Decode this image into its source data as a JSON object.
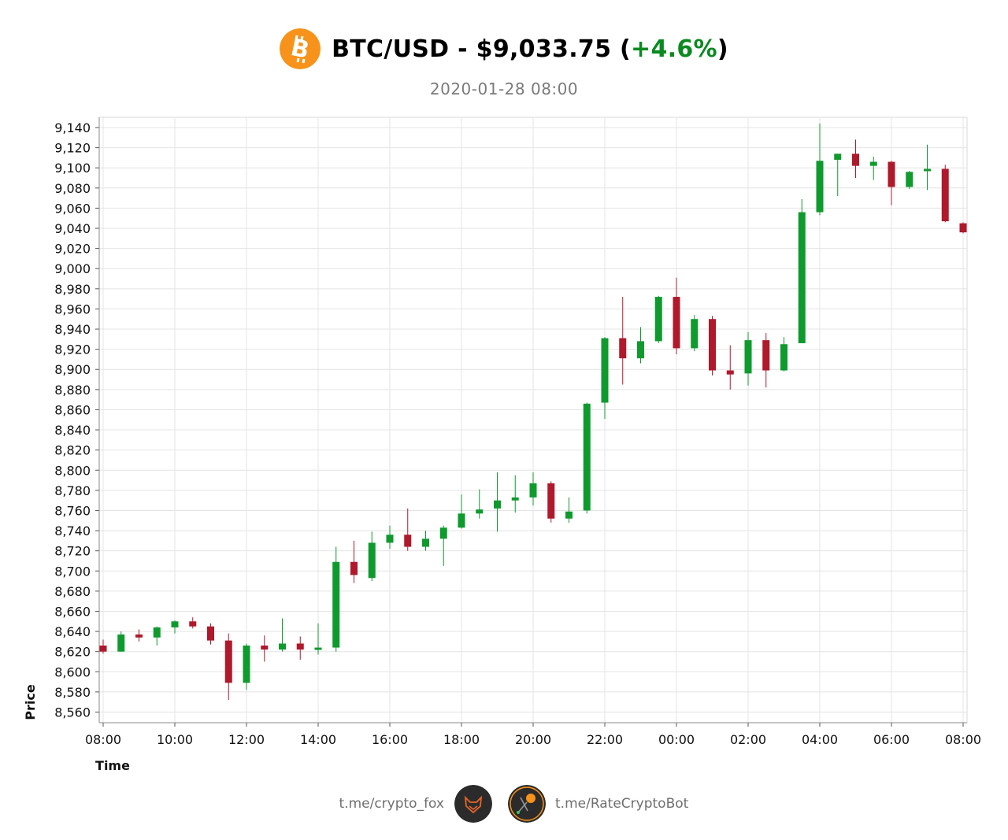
{
  "header": {
    "coin_icon": "bitcoin-icon",
    "coin_color": "#f7931a",
    "pair": "BTC/USD",
    "separator": "-",
    "price": "$9,033.75",
    "change": "+4.6%",
    "change_color": "#0a8a1f",
    "timestamp": "2020-01-28 08:00"
  },
  "chart_data": {
    "type": "candlestick",
    "xlabel": "Time",
    "ylabel": "Price",
    "ylim": [
      8550,
      9150
    ],
    "y_ticks": [
      8560,
      8580,
      8600,
      8620,
      8640,
      8660,
      8680,
      8700,
      8720,
      8740,
      8760,
      8780,
      8800,
      8820,
      8840,
      8860,
      8880,
      8900,
      8920,
      8940,
      8960,
      8980,
      9000,
      9020,
      9040,
      9060,
      9080,
      9100,
      9120,
      9140
    ],
    "x_start": "2020-01-27 08:00",
    "x_ticks": [
      "08:00",
      "10:00",
      "12:00",
      "14:00",
      "16:00",
      "18:00",
      "20:00",
      "22:00",
      "00:00",
      "02:00",
      "04:00",
      "06:00",
      "08:00"
    ],
    "up_color": "#0f9a2e",
    "down_color": "#b0182b",
    "grid": true,
    "candles": [
      {
        "t": "08:00",
        "o": 8626,
        "h": 8632,
        "l": 8618,
        "c": 8620
      },
      {
        "t": "08:30",
        "o": 8620,
        "h": 8640,
        "l": 8620,
        "c": 8637
      },
      {
        "t": "09:00",
        "o": 8637,
        "h": 8642,
        "l": 8630,
        "c": 8634
      },
      {
        "t": "09:30",
        "o": 8634,
        "h": 8645,
        "l": 8626,
        "c": 8644
      },
      {
        "t": "10:00",
        "o": 8644,
        "h": 8651,
        "l": 8638,
        "c": 8650
      },
      {
        "t": "10:30",
        "o": 8650,
        "h": 8654,
        "l": 8643,
        "c": 8645
      },
      {
        "t": "11:00",
        "o": 8645,
        "h": 8648,
        "l": 8627,
        "c": 8631
      },
      {
        "t": "11:30",
        "o": 8631,
        "h": 8638,
        "l": 8572,
        "c": 8589
      },
      {
        "t": "12:00",
        "o": 8589,
        "h": 8628,
        "l": 8582,
        "c": 8626
      },
      {
        "t": "12:30",
        "o": 8626,
        "h": 8636,
        "l": 8610,
        "c": 8622
      },
      {
        "t": "13:00",
        "o": 8622,
        "h": 8653,
        "l": 8620,
        "c": 8628
      },
      {
        "t": "13:30",
        "o": 8628,
        "h": 8635,
        "l": 8612,
        "c": 8622
      },
      {
        "t": "14:00",
        "o": 8622,
        "h": 8648,
        "l": 8617,
        "c": 8624
      },
      {
        "t": "14:30",
        "o": 8624,
        "h": 8724,
        "l": 8620,
        "c": 8709
      },
      {
        "t": "15:00",
        "o": 8709,
        "h": 8730,
        "l": 8688,
        "c": 8696
      },
      {
        "t": "15:30",
        "o": 8693,
        "h": 8739,
        "l": 8690,
        "c": 8728
      },
      {
        "t": "16:00",
        "o": 8728,
        "h": 8745,
        "l": 8722,
        "c": 8736
      },
      {
        "t": "16:30",
        "o": 8736,
        "h": 8762,
        "l": 8720,
        "c": 8724
      },
      {
        "t": "17:00",
        "o": 8724,
        "h": 8740,
        "l": 8720,
        "c": 8732
      },
      {
        "t": "17:30",
        "o": 8732,
        "h": 8745,
        "l": 8705,
        "c": 8743
      },
      {
        "t": "18:00",
        "o": 8743,
        "h": 8776,
        "l": 8742,
        "c": 8757
      },
      {
        "t": "18:30",
        "o": 8757,
        "h": 8781,
        "l": 8752,
        "c": 8761
      },
      {
        "t": "19:00",
        "o": 8762,
        "h": 8798,
        "l": 8739,
        "c": 8770
      },
      {
        "t": "19:30",
        "o": 8770,
        "h": 8795,
        "l": 8758,
        "c": 8773
      },
      {
        "t": "20:00",
        "o": 8773,
        "h": 8798,
        "l": 8765,
        "c": 8787
      },
      {
        "t": "20:30",
        "o": 8787,
        "h": 8789,
        "l": 8748,
        "c": 8752
      },
      {
        "t": "21:00",
        "o": 8752,
        "h": 8773,
        "l": 8748,
        "c": 8759
      },
      {
        "t": "21:30",
        "o": 8760,
        "h": 8867,
        "l": 8757,
        "c": 8866
      },
      {
        "t": "22:00",
        "o": 8867,
        "h": 8932,
        "l": 8851,
        "c": 8931
      },
      {
        "t": "22:30",
        "o": 8931,
        "h": 8972,
        "l": 8885,
        "c": 8911
      },
      {
        "t": "23:00",
        "o": 8911,
        "h": 8942,
        "l": 8906,
        "c": 8928
      },
      {
        "t": "23:30",
        "o": 8928,
        "h": 8973,
        "l": 8926,
        "c": 8972
      },
      {
        "t": "00:00",
        "o": 8972,
        "h": 8991,
        "l": 8915,
        "c": 8921
      },
      {
        "t": "00:30",
        "o": 8921,
        "h": 8954,
        "l": 8918,
        "c": 8950
      },
      {
        "t": "01:00",
        "o": 8950,
        "h": 8953,
        "l": 8894,
        "c": 8899
      },
      {
        "t": "01:30",
        "o": 8899,
        "h": 8924,
        "l": 8880,
        "c": 8895
      },
      {
        "t": "02:00",
        "o": 8896,
        "h": 8937,
        "l": 8884,
        "c": 8929
      },
      {
        "t": "02:30",
        "o": 8929,
        "h": 8936,
        "l": 8882,
        "c": 8899
      },
      {
        "t": "03:00",
        "o": 8899,
        "h": 8932,
        "l": 8898,
        "c": 8925
      },
      {
        "t": "03:30",
        "o": 8926,
        "h": 9069,
        "l": 8926,
        "c": 9056
      },
      {
        "t": "04:00",
        "o": 9056,
        "h": 9144,
        "l": 9053,
        "c": 9107
      },
      {
        "t": "04:30",
        "o": 9108,
        "h": 9114,
        "l": 9072,
        "c": 9114
      },
      {
        "t": "05:00",
        "o": 9114,
        "h": 9128,
        "l": 9090,
        "c": 9102
      },
      {
        "t": "05:30",
        "o": 9102,
        "h": 9111,
        "l": 9088,
        "c": 9106
      },
      {
        "t": "06:00",
        "o": 9106,
        "h": 9107,
        "l": 9063,
        "c": 9081
      },
      {
        "t": "06:30",
        "o": 9081,
        "h": 9097,
        "l": 9079,
        "c": 9096
      },
      {
        "t": "07:00",
        "o": 9097,
        "h": 9123,
        "l": 9078,
        "c": 9099
      },
      {
        "t": "07:30",
        "o": 9099,
        "h": 9103,
        "l": 9046,
        "c": 9047
      },
      {
        "t": "08:00",
        "o": 9045,
        "h": 9046,
        "l": 9035,
        "c": 9036
      }
    ]
  },
  "footer": {
    "left_link": "t.me/crypto_fox",
    "left_logo_icon": "fox-logo-icon",
    "right_logo_icon": "ratecryptobot-logo-icon",
    "right_link": "t.me/RateCryptoBot"
  }
}
